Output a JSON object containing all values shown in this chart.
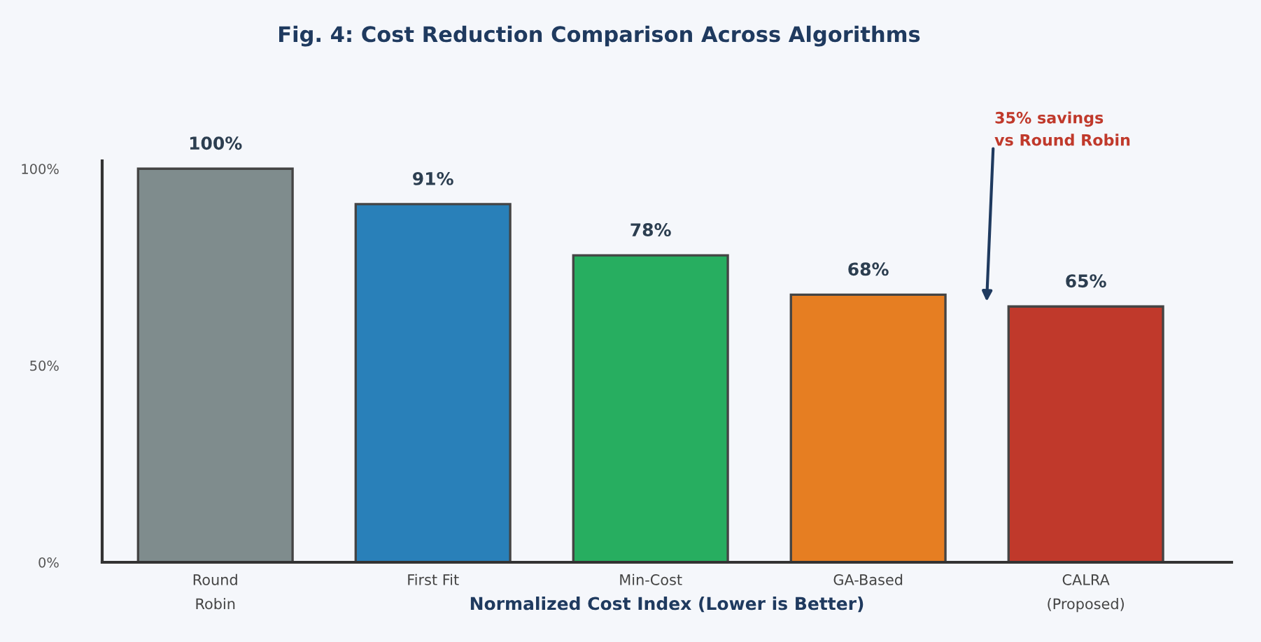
{
  "chart_data": {
    "type": "bar",
    "title": "Fig. 4: Cost Reduction Comparison Across Algorithms",
    "xlabel": "Normalized Cost Index (Lower is Better)",
    "categories": [
      "Round\nRobin",
      "First Fit",
      "Min-Cost",
      "GA-Based",
      "CALRA\n(Proposed)"
    ],
    "values": [
      100,
      91,
      78,
      68,
      65
    ],
    "colors": [
      "#7f8c8d",
      "#2980b9",
      "#27ae60",
      "#e67e22",
      "#c0392b"
    ],
    "value_labels": [
      "100%",
      "91%",
      "78%",
      "68%",
      "65%"
    ],
    "ylim": [
      0,
      102
    ],
    "yticks": [
      {
        "value": 0,
        "label": "0%"
      },
      {
        "value": 50,
        "label": "50%"
      },
      {
        "value": 100,
        "label": "100%"
      }
    ],
    "annotations": [
      "35% savings\nvs Round Robin"
    ],
    "grid": false,
    "legend": false
  }
}
